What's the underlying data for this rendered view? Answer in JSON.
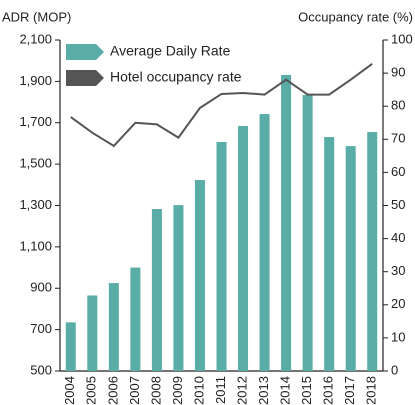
{
  "chart_data": {
    "type": "bar",
    "y_label": "ADR (MOP)",
    "y2_label": "Occupancy rate (%)",
    "categories": [
      "2004",
      "2005",
      "2006",
      "2007",
      "2008",
      "2009",
      "2010",
      "2011",
      "2012",
      "2013",
      "2014",
      "2015",
      "2016",
      "2017",
      "2018"
    ],
    "series": [
      {
        "name": "Average Daily Rate",
        "type": "bar",
        "axis": "y",
        "color": "#5aaca6",
        "values": [
          735,
          865,
          925,
          1000,
          1283,
          1302,
          1423,
          1607,
          1684,
          1742,
          1931,
          1834,
          1631,
          1587,
          1655
        ]
      },
      {
        "name": "Hotel occupancy rate",
        "type": "line",
        "axis": "y2",
        "color": "#555555",
        "values": [
          76.7,
          72,
          68,
          75,
          74.5,
          70.5,
          79.5,
          83.7,
          84,
          83.5,
          88,
          83.5,
          83.5,
          88,
          92.8
        ]
      }
    ],
    "ylim": [
      500,
      2100
    ],
    "yticks": [
      500,
      700,
      900,
      {
        "value": 1100,
        "label": "1,100"
      },
      {
        "value": 1300,
        "label": "1,300"
      },
      {
        "value": 1500,
        "label": "1,500"
      },
      {
        "value": 1700,
        "label": "1,700"
      },
      {
        "value": 1900,
        "label": "1,900"
      },
      {
        "value": 2100,
        "label": "2,100"
      }
    ],
    "y2lim": [
      0,
      100
    ],
    "y2ticks": [
      0,
      10,
      20,
      30,
      40,
      50,
      60,
      70,
      80,
      90,
      100
    ],
    "legend": "top-left"
  }
}
